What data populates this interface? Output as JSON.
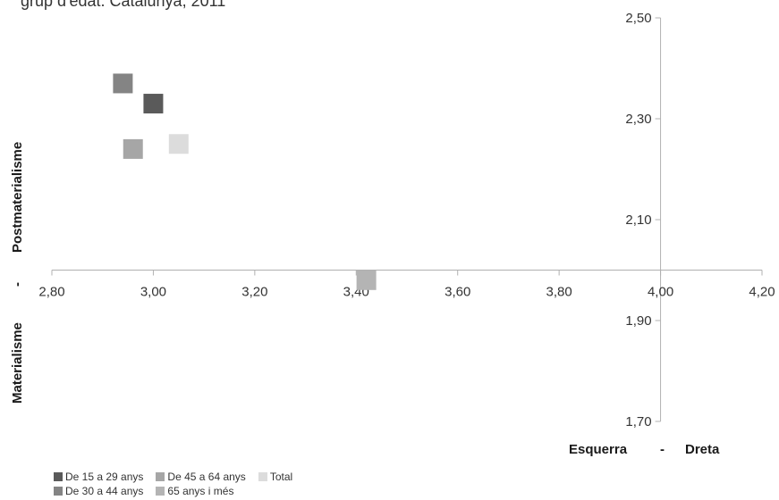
{
  "chart_data": {
    "type": "scatter",
    "title": "grup d'edat. Catalunya, 2011",
    "xlabel": {
      "left": "Esquerra",
      "sep": "-",
      "right": "Dreta"
    },
    "ylabel": {
      "bottom": "Materialisme",
      "sep": "-",
      "top": "Postmaterialisme"
    },
    "xlim": [
      2.8,
      4.2
    ],
    "ylim": [
      1.7,
      2.5
    ],
    "x_cross": 4.0,
    "y_cross": 2.0,
    "x_ticks": [
      "2,80",
      "3,00",
      "3,20",
      "3,40",
      "3,60",
      "3,80",
      "4,00",
      "4,20"
    ],
    "y_ticks": [
      "1,70",
      "1,90",
      "2,10",
      "2,30",
      "2,50"
    ],
    "series": [
      {
        "name": "De 15 a 29 anys",
        "color": "#5a5a5a",
        "x": 3.0,
        "y": 2.33
      },
      {
        "name": "De 30 a 44 anys",
        "color": "#848484",
        "x": 2.94,
        "y": 2.37
      },
      {
        "name": "De 45 a 64 anys",
        "color": "#a6a6a6",
        "x": 2.96,
        "y": 2.24
      },
      {
        "name": "65 anys i més",
        "color": "#b4b4b4",
        "x": 3.42,
        "y": 1.98
      },
      {
        "name": "Total",
        "color": "#dcdcdc",
        "x": 3.05,
        "y": 2.25
      }
    ],
    "legend_order": [
      0,
      2,
      4,
      1,
      3
    ],
    "grid": false,
    "legend_position": "bottom-left"
  }
}
